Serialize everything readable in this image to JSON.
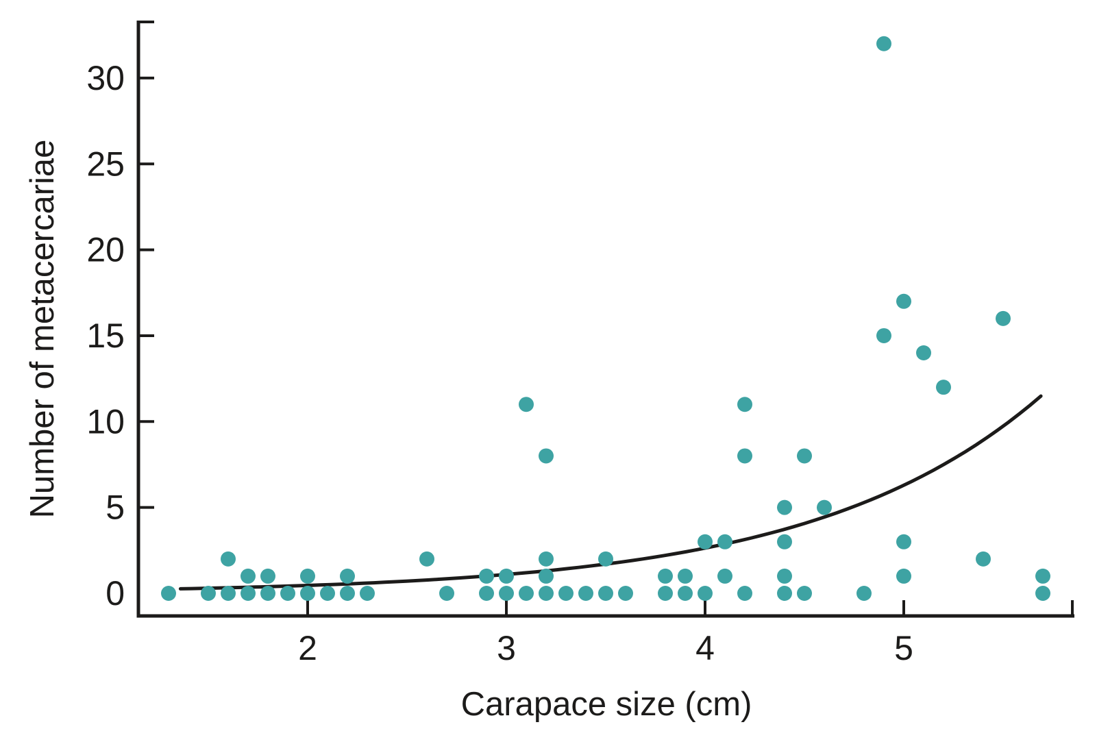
{
  "chart_data": {
    "type": "scatter",
    "title": "",
    "xlabel": "Carapace size (cm)",
    "ylabel": "Number of metacercariae",
    "x_tick_labels": [
      "2",
      "3",
      "4",
      "5"
    ],
    "x_tick_values": [
      2,
      3,
      4,
      5
    ],
    "y_tick_labels": [
      "0",
      "5",
      "10",
      "15",
      "20",
      "25",
      "30"
    ],
    "y_tick_values": [
      0,
      5,
      10,
      15,
      20,
      25,
      30
    ],
    "xlim": [
      1.16,
      5.85
    ],
    "ylim": [
      -1.3,
      33.4
    ],
    "grid": false,
    "legend_position": "none",
    "marker_color": "#3ea3a3",
    "axis_color": "#1c1b1a",
    "curve_color": "#1c1b1a",
    "points": [
      [
        1.3,
        0
      ],
      [
        1.5,
        0
      ],
      [
        1.6,
        0
      ],
      [
        1.7,
        0
      ],
      [
        1.8,
        0
      ],
      [
        1.9,
        0
      ],
      [
        2.0,
        0
      ],
      [
        2.1,
        0
      ],
      [
        2.2,
        0
      ],
      [
        2.3,
        0
      ],
      [
        2.7,
        0
      ],
      [
        2.9,
        0
      ],
      [
        3.0,
        0
      ],
      [
        3.1,
        0
      ],
      [
        3.2,
        0
      ],
      [
        3.3,
        0
      ],
      [
        3.4,
        0
      ],
      [
        3.5,
        0
      ],
      [
        3.6,
        0
      ],
      [
        3.8,
        0
      ],
      [
        3.9,
        0
      ],
      [
        4.0,
        0
      ],
      [
        4.2,
        0
      ],
      [
        4.4,
        0
      ],
      [
        4.5,
        0
      ],
      [
        4.8,
        0
      ],
      [
        5.7,
        0
      ],
      [
        1.7,
        1
      ],
      [
        1.8,
        1
      ],
      [
        2.0,
        1
      ],
      [
        2.2,
        1
      ],
      [
        2.9,
        1
      ],
      [
        3.0,
        1
      ],
      [
        3.2,
        1
      ],
      [
        3.8,
        1
      ],
      [
        3.9,
        1
      ],
      [
        4.1,
        1
      ],
      [
        4.4,
        1
      ],
      [
        5.0,
        1
      ],
      [
        5.7,
        1
      ],
      [
        1.6,
        2
      ],
      [
        2.6,
        2
      ],
      [
        3.2,
        2
      ],
      [
        3.5,
        2
      ],
      [
        5.4,
        2
      ],
      [
        4.0,
        3
      ],
      [
        4.1,
        3
      ],
      [
        4.4,
        3
      ],
      [
        5.0,
        3
      ],
      [
        4.4,
        5
      ],
      [
        4.6,
        5
      ],
      [
        3.2,
        8
      ],
      [
        4.2,
        8
      ],
      [
        4.5,
        8
      ],
      [
        3.1,
        11
      ],
      [
        4.2,
        11
      ],
      [
        5.2,
        12
      ],
      [
        5.1,
        14
      ],
      [
        4.9,
        15
      ],
      [
        5.5,
        16
      ],
      [
        5.0,
        17
      ],
      [
        4.9,
        32
      ]
    ],
    "trend_curve": {
      "shape": "exponential",
      "a": 0.0804,
      "b": 0.872,
      "x_start": 1.36,
      "x_end": 5.69
    }
  }
}
